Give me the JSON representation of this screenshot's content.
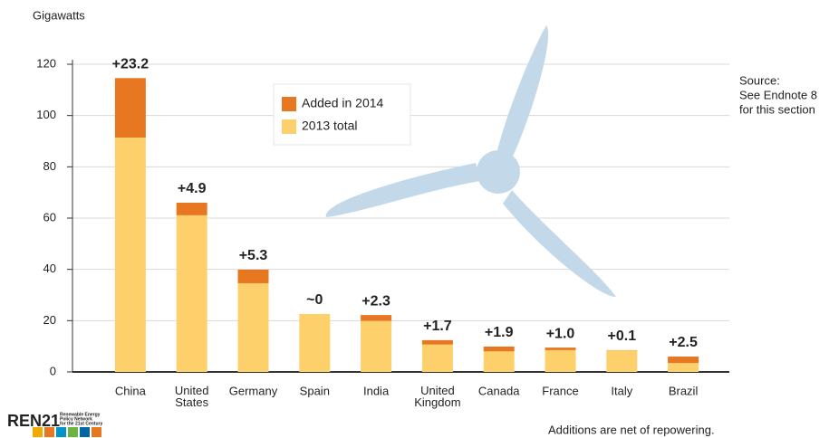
{
  "chart_data": {
    "type": "stacked_bar",
    "y_axis_label": "Gigawatts",
    "categories": [
      "China",
      "United States",
      "Germany",
      "Spain",
      "India",
      "United Kingdom",
      "Canada",
      "France",
      "Italy",
      "Brazil"
    ],
    "series": [
      {
        "name": "2013 total",
        "color": "#fdd06c",
        "values": [
          91.4,
          61.1,
          34.6,
          22.6,
          19.9,
          10.7,
          8.0,
          8.5,
          8.4,
          3.5
        ]
      },
      {
        "name": "Added in 2014",
        "color": "#e87722",
        "values": [
          23.2,
          4.9,
          5.3,
          0,
          2.3,
          1.7,
          1.9,
          1.0,
          0.1,
          2.5
        ],
        "value_labels": [
          "+23.2",
          "+4.9",
          "+5.3",
          "~0",
          "+2.3",
          "+1.7",
          "+1.9",
          "+1.0",
          "+0.1",
          "+2.5"
        ]
      }
    ],
    "ylim": [
      0,
      120
    ],
    "yticks": [
      0,
      20,
      40,
      60,
      80,
      100,
      120
    ],
    "grid": true,
    "legend_order": [
      1,
      0
    ],
    "source_note": [
      "Source:",
      "See Endnote 8",
      "for this section"
    ],
    "footnote": "Additions are net of repowering.",
    "logo": "REN21",
    "logo_subtitle": [
      "Renewable Energy",
      "Policy Network",
      "for the 21st Century"
    ]
  }
}
